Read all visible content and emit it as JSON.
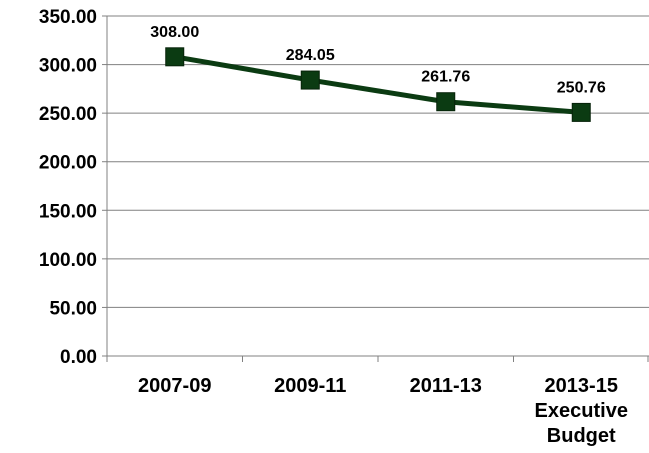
{
  "chart_data": {
    "type": "line",
    "categories": [
      [
        "2007-09"
      ],
      [
        "2009-11"
      ],
      [
        "2011-13"
      ],
      [
        "2013-15",
        "Executive",
        "Budget"
      ]
    ],
    "series": [
      {
        "values": [
          308.0,
          284.05,
          261.76,
          250.76
        ],
        "data_labels": [
          "308.00",
          "284.05",
          "261.76",
          "250.76"
        ]
      }
    ],
    "ylim": [
      0,
      350
    ],
    "yticks": [
      0,
      50,
      100,
      150,
      200,
      250,
      300,
      350
    ],
    "ytick_labels": [
      "0.00",
      "50.00",
      "100.00",
      "150.00",
      "200.00",
      "250.00",
      "300.00",
      "350.00"
    ],
    "grid": "horizontal",
    "legend": "none",
    "title": "",
    "xlabel": "",
    "ylabel": "",
    "colors": {
      "line": "#0b3b12",
      "marker": "#0b3b12",
      "gridline": "#808080",
      "axis": "#808080"
    }
  }
}
